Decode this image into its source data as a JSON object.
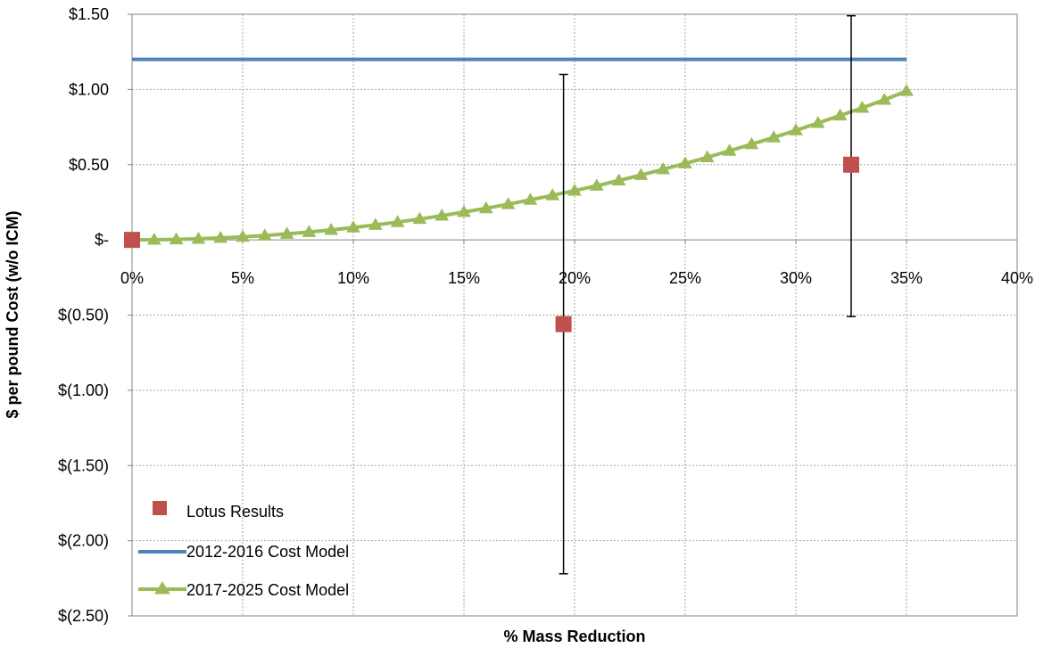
{
  "chart_data": {
    "type": "line",
    "title": "",
    "xlabel": "% Mass Reduction",
    "ylabel": "$ per pound Cost (w/o ICM)",
    "xlim": [
      0,
      0.4
    ],
    "ylim": [
      -2.5,
      1.5
    ],
    "x_ticks": [
      0,
      0.05,
      0.1,
      0.15,
      0.2,
      0.25,
      0.3,
      0.35,
      0.4
    ],
    "x_tick_labels": [
      "0%",
      "5%",
      "10%",
      "15%",
      "20%",
      "25%",
      "30%",
      "35%",
      "40%"
    ],
    "y_ticks": [
      1.5,
      1.0,
      0.5,
      0,
      -0.5,
      -1.0,
      -1.5,
      -2.0,
      -2.5
    ],
    "y_tick_labels": [
      "$1.50",
      "$1.00",
      "$0.50",
      "$-",
      "$(0.50)",
      "$(1.00)",
      "$(1.50)",
      "$(2.00)",
      "$(2.50)"
    ],
    "grid": true,
    "legend_position": "bottom-left",
    "series": [
      {
        "name": "Lotus Results",
        "kind": "scatter",
        "marker": "square",
        "color": "#c0504d",
        "points": [
          {
            "x": 0,
            "y": 0
          },
          {
            "x": 0.195,
            "y": -0.56,
            "err_low": -2.22,
            "err_high": 1.1
          },
          {
            "x": 0.325,
            "y": 0.5,
            "err_low": -0.51,
            "err_high": 1.49
          }
        ]
      },
      {
        "name": "2012-2016 Cost Model",
        "kind": "line",
        "color": "#4f81bd",
        "x": [
          0,
          0.35
        ],
        "y": [
          1.2,
          1.2
        ]
      },
      {
        "name": "2017-2025 Cost Model",
        "kind": "line",
        "marker": "triangle",
        "color": "#9bbb59",
        "x": [
          0,
          0.01,
          0.02,
          0.03,
          0.04,
          0.05,
          0.06,
          0.07,
          0.08,
          0.09,
          0.1,
          0.11,
          0.12,
          0.13,
          0.14,
          0.15,
          0.16,
          0.17,
          0.18,
          0.19,
          0.2,
          0.21,
          0.22,
          0.23,
          0.24,
          0.25,
          0.26,
          0.27,
          0.28,
          0.29,
          0.3,
          0.31,
          0.32,
          0.33,
          0.34,
          0.35
        ],
        "y": [
          0.0,
          0.001,
          0.003,
          0.007,
          0.013,
          0.02,
          0.029,
          0.04,
          0.052,
          0.066,
          0.082,
          0.099,
          0.118,
          0.139,
          0.161,
          0.185,
          0.21,
          0.237,
          0.266,
          0.296,
          0.327,
          0.36,
          0.395,
          0.431,
          0.469,
          0.508,
          0.549,
          0.592,
          0.636,
          0.681,
          0.728,
          0.777,
          0.827,
          0.878,
          0.931,
          0.99
        ]
      }
    ]
  }
}
